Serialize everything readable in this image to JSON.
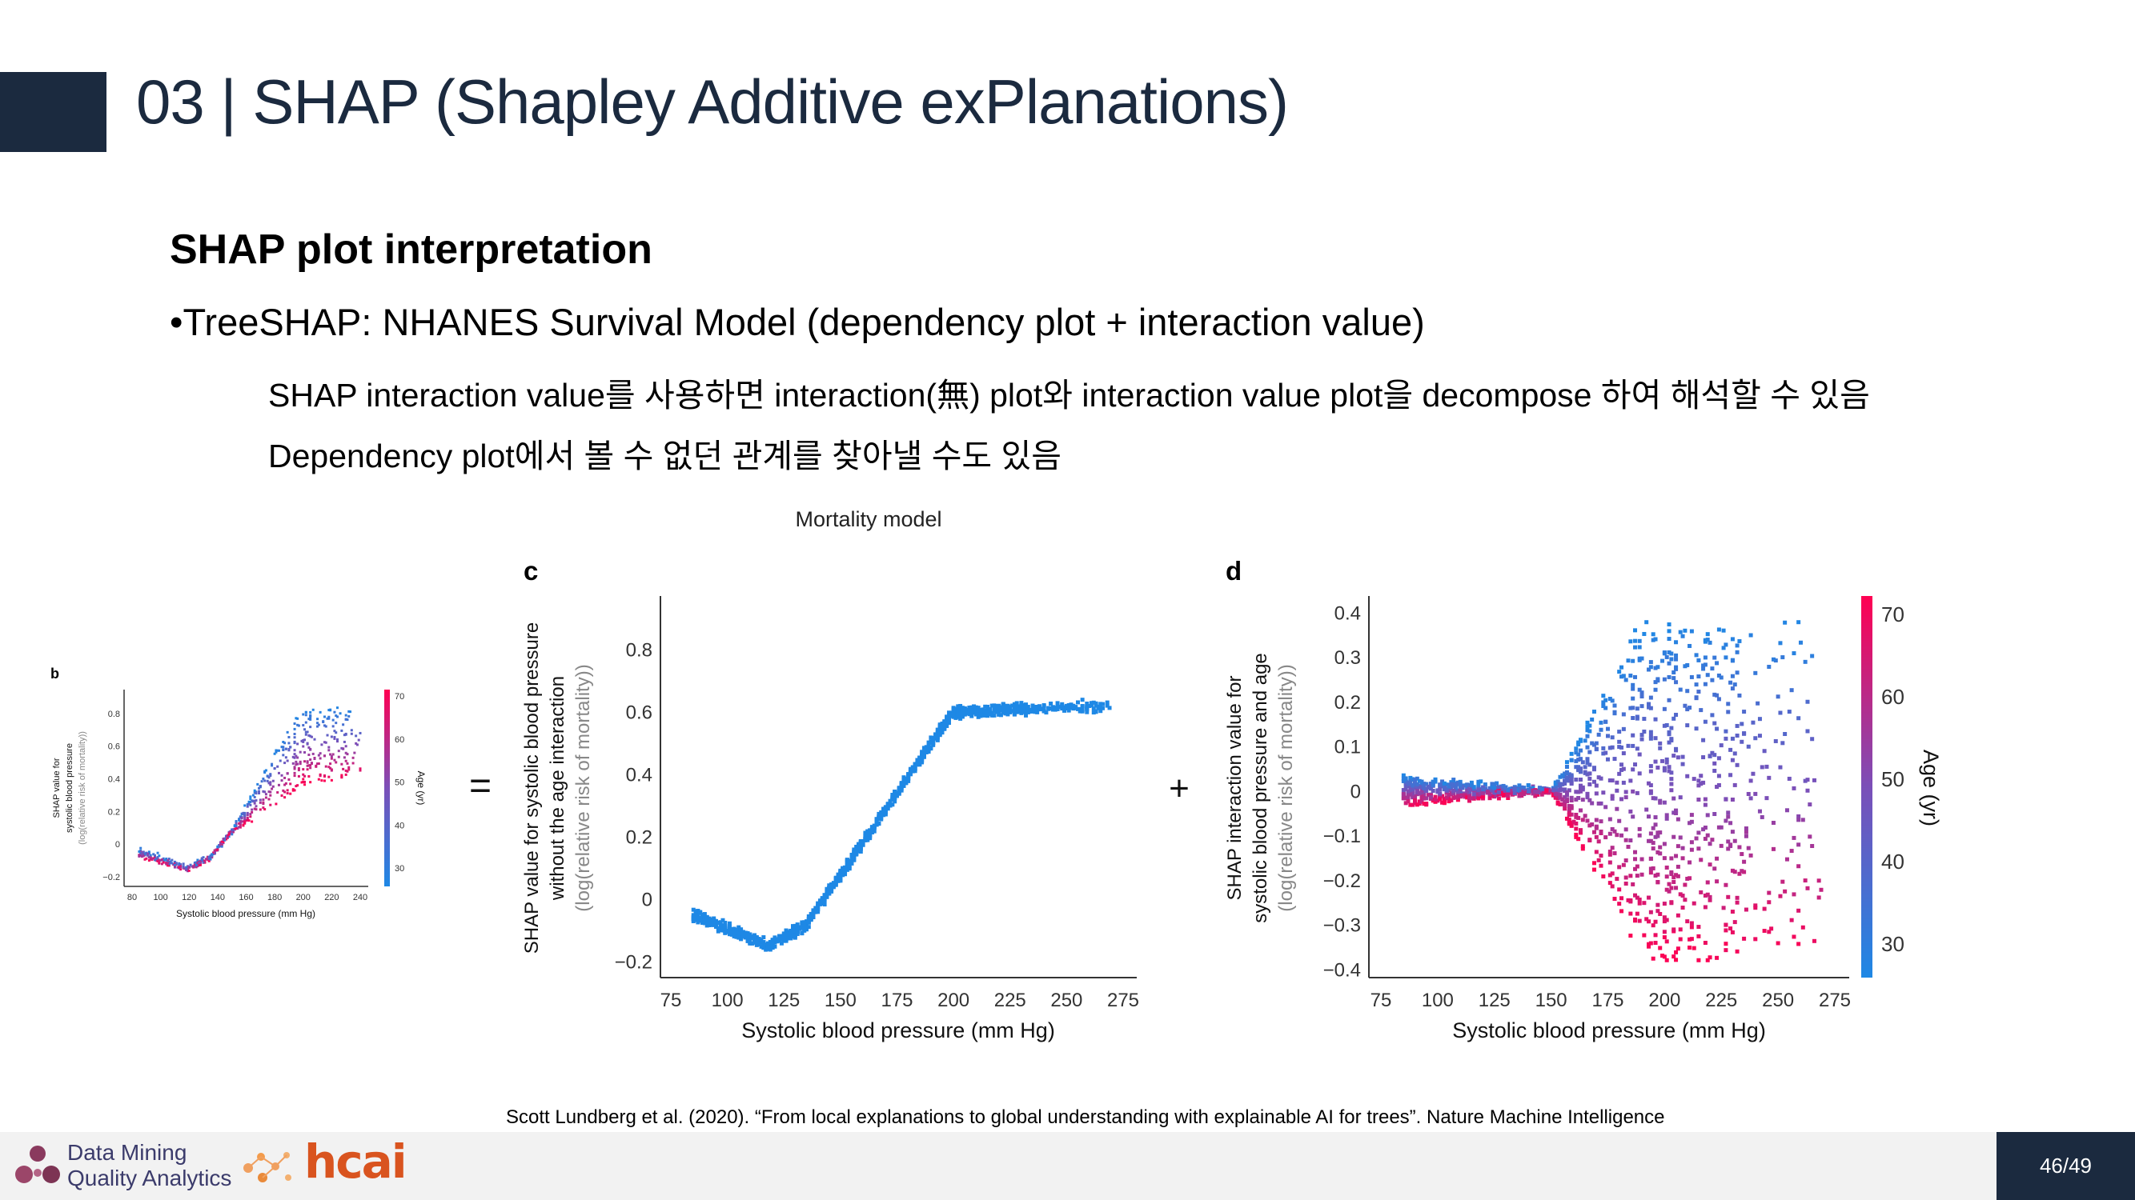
{
  "header": {
    "title": "03 | SHAP (Shapley Additive exPlanations)"
  },
  "content": {
    "section_title": "SHAP plot interpretation",
    "bullet": "•TreeSHAP: NHANES Survival Model (dependency plot + interaction value)",
    "line1": "SHAP interaction value를 사용하면 interaction(無) plot와 interaction value plot을 decompose 하여 해석할 수 있음",
    "line2": "Dependency plot에서 볼 수 없던 관계를 찾아낼 수도 있음"
  },
  "figure": {
    "header": "Mortality model",
    "equals": "=",
    "plus": "+",
    "panel_b": {
      "letter": "b",
      "ylabel_1": "SHAP value for",
      "ylabel_2": "systolic blood pressure",
      "ylabel_3": "(log(relative risk of mortality))",
      "xlabel": "Systolic blood pressure (mm Hg)",
      "yticks": [
        "0.8",
        "0.6",
        "0.4",
        "0.2",
        "0",
        "−0.2"
      ],
      "xticks": [
        "80",
        "100",
        "120",
        "140",
        "160",
        "180",
        "200",
        "220",
        "240"
      ],
      "cbar_ticks": [
        "70",
        "60",
        "50",
        "40",
        "30"
      ],
      "cbar_label": "Age (yr)"
    },
    "panel_c": {
      "letter": "c",
      "ylabel_1": "SHAP value for systolic blood pressure",
      "ylabel_2": "without the age interaction",
      "ylabel_3": "(log(relative risk of mortality))",
      "xlabel": "Systolic blood pressure (mm Hg)",
      "yticks": [
        "0.8",
        "0.6",
        "0.4",
        "0.2",
        "0",
        "−0.2"
      ],
      "xticks": [
        "75",
        "100",
        "125",
        "150",
        "175",
        "200",
        "225",
        "250",
        "275"
      ]
    },
    "panel_d": {
      "letter": "d",
      "ylabel_1": "SHAP interaction value for",
      "ylabel_2": "systolic blood pressure and age",
      "ylabel_3": "(log(relative risk of mortality))",
      "xlabel": "Systolic blood pressure (mm Hg)",
      "yticks": [
        "0.4",
        "0.3",
        "0.2",
        "0.1",
        "0",
        "−0.1",
        "−0.2",
        "−0.3",
        "−0.4"
      ],
      "xticks": [
        "75",
        "100",
        "125",
        "150",
        "175",
        "200",
        "225",
        "250",
        "275"
      ],
      "cbar_ticks": [
        "70",
        "60",
        "50",
        "40",
        "30"
      ],
      "cbar_label": "Age (yr)"
    },
    "colors": {
      "young": "#1e88e5",
      "mid": "#7b4fb8",
      "old": "#ff0052"
    }
  },
  "citation": "Scott Lundberg et al. (2020). “From local explanations to global understanding with explainable AI for trees”. Nature Machine Intelligence",
  "footer": {
    "logo_line1": "Data Mining",
    "logo_line2": "Quality Analytics",
    "logo_hcai": "hcai",
    "page": "46/49"
  }
}
